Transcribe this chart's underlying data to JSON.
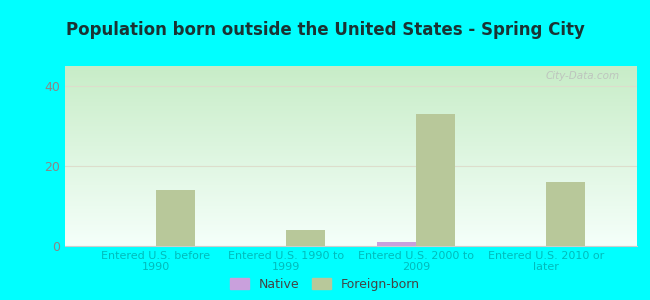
{
  "title": "Population born outside the United States - Spring City",
  "categories": [
    "Entered U.S. before\n1990",
    "Entered U.S. 1990 to\n1999",
    "Entered U.S. 2000 to\n2009",
    "Entered U.S. 2010 or\nlater"
  ],
  "native_values": [
    0,
    0,
    1,
    0
  ],
  "foreign_born_values": [
    14,
    4,
    33,
    16
  ],
  "native_color": "#c9a0dc",
  "foreign_born_color": "#b8c89a",
  "background_color": "#00ffff",
  "plot_bg_top": "#f5fffa",
  "plot_bg_bottom": "#c8edc8",
  "axis_label_color": "#00bbbb",
  "tick_label_color": "#888888",
  "title_color": "#1a3333",
  "ylim": [
    0,
    45
  ],
  "yticks": [
    0,
    20,
    40
  ],
  "bar_width": 0.3,
  "watermark": "City-Data.com",
  "grid_color": "#ddddcc",
  "legend_label_color": "#444444"
}
